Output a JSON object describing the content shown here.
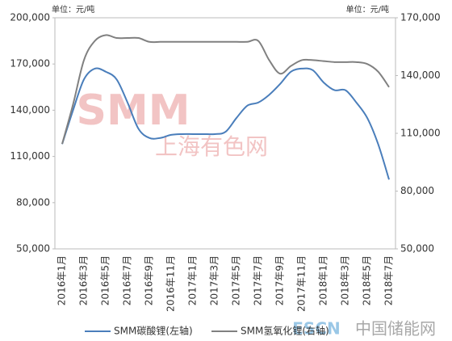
{
  "chart_data": {
    "type": "line",
    "unit_left": "单位：元/吨",
    "unit_right": "单位：元/吨",
    "annotations": [
      "SMM",
      "上海有色网",
      "ESCN",
      "中国储能网"
    ],
    "categories": [
      "2016年1月",
      null,
      "2016年3月",
      null,
      "2016年5月",
      null,
      "2016年7月",
      null,
      "2016年9月",
      null,
      "2016年11月",
      null,
      "2017年1月",
      null,
      "2017年3月",
      null,
      "2017年5月",
      null,
      "2017年7月",
      null,
      "2017年9月",
      null,
      "2017年11月",
      null,
      "2018年1月",
      null,
      "2018年3月",
      null,
      "2018年5月",
      null,
      "2018年7月"
    ],
    "series": [
      {
        "name": "SMM碳酸锂(左轴)",
        "color": "#4a7ebb",
        "axis": "y",
        "values": [
          118000,
          140000,
          160000,
          167000,
          165000,
          160000,
          145000,
          128000,
          122000,
          122000,
          124000,
          124500,
          124500,
          124500,
          124500,
          126000,
          135000,
          143000,
          145000,
          150000,
          157000,
          165000,
          167000,
          166000,
          158000,
          153000,
          153000,
          145000,
          135000,
          118000,
          95000
        ]
      },
      {
        "name": "SMM氢氧化锂(右轴)",
        "color": "#808080",
        "axis": "y2",
        "values": [
          104500,
          125000,
          148000,
          158000,
          161000,
          159500,
          159500,
          159500,
          157500,
          157500,
          157500,
          157500,
          157500,
          157500,
          157500,
          157500,
          157500,
          157500,
          158000,
          148000,
          141000,
          145000,
          148000,
          148000,
          147500,
          147000,
          147000,
          147000,
          146000,
          142000,
          134000
        ]
      }
    ],
    "ylim": [
      50000,
      200000
    ],
    "yticks": [
      {
        "value": 50000,
        "label": "50,000"
      },
      {
        "value": 80000,
        "label": "80,000"
      },
      {
        "value": 110000,
        "label": "110,000"
      },
      {
        "value": 140000,
        "label": "140,000"
      },
      {
        "value": 170000,
        "label": "170,000"
      },
      {
        "value": 200000,
        "label": "200,000"
      }
    ],
    "y2lim": [
      50000,
      170000
    ],
    "y2ticks": [
      {
        "value": 50000,
        "label": "50,000"
      },
      {
        "value": 80000,
        "label": "80,000"
      },
      {
        "value": 110000,
        "label": "110,000"
      },
      {
        "value": 140000,
        "label": "140,000"
      },
      {
        "value": 170000,
        "label": "170,000"
      }
    ],
    "grid": false
  }
}
